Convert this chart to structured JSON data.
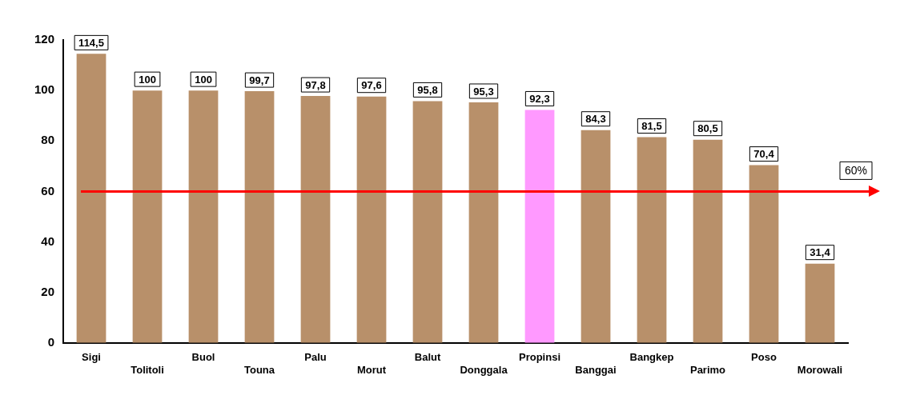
{
  "chart_data": {
    "type": "bar",
    "categories": [
      "Sigi",
      "Tolitoli",
      "Buol",
      "Touna",
      "Palu",
      "Morut",
      "Balut",
      "Donggala",
      "Propinsi",
      "Banggai",
      "Bangkep",
      "Parimo",
      "Poso",
      "Morowali"
    ],
    "values": [
      114.5,
      100,
      100,
      99.7,
      97.8,
      97.6,
      95.8,
      95.3,
      92.3,
      84.3,
      81.5,
      80.5,
      70.4,
      31.4
    ],
    "value_labels": [
      "114,5",
      "100",
      "100",
      "99,7",
      "97,8",
      "97,6",
      "95,8",
      "95,3",
      "92,3",
      "84,3",
      "81,5",
      "80,5",
      "70,4",
      "31,4"
    ],
    "colors": [
      "#b8906a",
      "#b8906a",
      "#b8906a",
      "#b8906a",
      "#b8906a",
      "#b8906a",
      "#b8906a",
      "#b8906a",
      "#ff99ff",
      "#b8906a",
      "#b8906a",
      "#b8906a",
      "#b8906a",
      "#b8906a"
    ],
    "ylim": [
      0,
      120
    ],
    "yticks": [
      0,
      20,
      40,
      60,
      80,
      100,
      120
    ],
    "ref_lines": [
      {
        "axis": "y",
        "value": 60,
        "label": "60%",
        "color": "#ff0000"
      }
    ],
    "grid": false,
    "legend": false
  }
}
